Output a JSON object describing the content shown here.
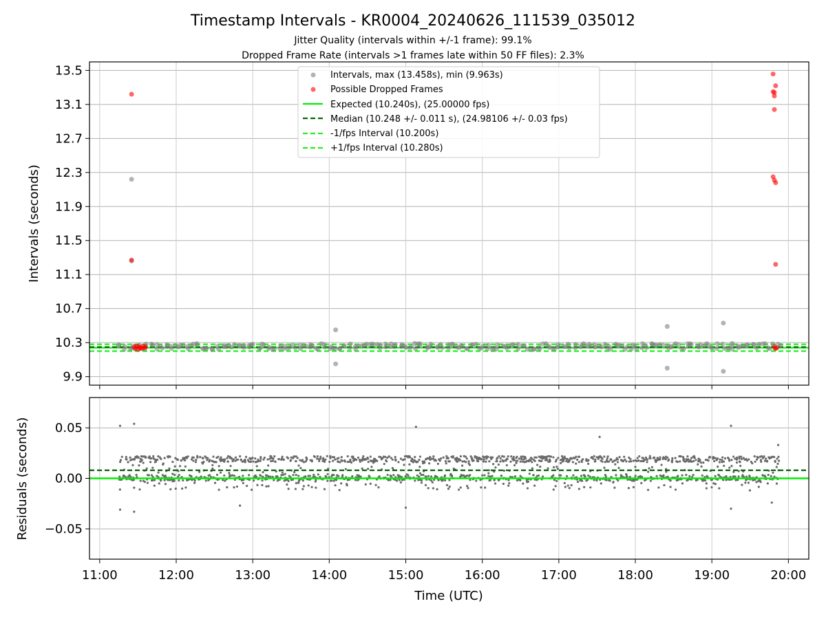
{
  "title": "Timestamp Intervals - KR0004_20240626_111539_035012",
  "subtitle_1": "Jitter Quality (intervals within +/-1 frame): 99.1%",
  "subtitle_2": "Dropped Frame Rate (intervals >1 frames late within 50 FF files): 2.3%",
  "colors": {
    "intervals": "#808080",
    "dropped": "#ff0000",
    "expected": "#00ee00",
    "median": "#006400",
    "bounds": "#22ee22",
    "residuals": "#696969"
  },
  "chart_data": [
    {
      "type": "scatter",
      "ylabel": "Intervals (seconds)",
      "ylim": [
        9.8,
        13.6
      ],
      "xlim": [
        "10:52",
        "20:16"
      ],
      "y_ticks": [
        "9.9",
        "10.3",
        "10.7",
        "11.1",
        "11.5",
        "11.9",
        "12.3",
        "12.7",
        "13.1",
        "13.5"
      ],
      "grid": true,
      "legend_placement": "upper-center",
      "legend": [
        "Intervals, max (13.458s), min (9.963s)",
        "Possible Dropped Frames",
        "Expected (10.240s), (25.00000 fps)",
        "Median (10.248 +/- 0.011 s), (24.98106 +/- 0.03 fps)",
        "-1/fps Interval (10.200s)",
        "+1/fps Interval (10.280s)"
      ],
      "reference_lines": {
        "expected": 10.24,
        "median": 10.248,
        "lower_bound": 10.2,
        "upper_bound": 10.28
      },
      "series": [
        {
          "name": "Intervals, max (13.458s), min (9.963s)",
          "dense_band": {
            "x_range": [
              "11:15",
              "19:52"
            ],
            "y_range": [
              10.22,
              10.29
            ]
          },
          "points": [
            {
              "x": "11:25",
              "y": 12.22
            },
            {
              "x": "11:25",
              "y": 11.26
            },
            {
              "x": "14:05",
              "y": 10.45
            },
            {
              "x": "14:05",
              "y": 10.05
            },
            {
              "x": "15:07",
              "y": 10.29
            },
            {
              "x": "18:25",
              "y": 10.49
            },
            {
              "x": "18:25",
              "y": 10.0
            },
            {
              "x": "19:09",
              "y": 10.53
            },
            {
              "x": "19:09",
              "y": 9.963
            },
            {
              "x": "19:16",
              "y": 10.29
            }
          ]
        },
        {
          "name": "Possible Dropped Frames",
          "points": [
            {
              "x": "11:25",
              "y": 13.22
            },
            {
              "x": "11:25",
              "y": 11.27
            },
            {
              "x": "11:27",
              "y": 10.25
            },
            {
              "x": "11:28",
              "y": 10.23
            },
            {
              "x": "11:29",
              "y": 10.26
            },
            {
              "x": "11:30",
              "y": 10.22
            },
            {
              "x": "11:31",
              "y": 10.25
            },
            {
              "x": "11:32",
              "y": 10.24
            },
            {
              "x": "11:33",
              "y": 10.23
            },
            {
              "x": "11:34",
              "y": 10.26
            },
            {
              "x": "11:35",
              "y": 10.24
            },
            {
              "x": "11:36",
              "y": 10.25
            },
            {
              "x": "19:48",
              "y": 13.458
            },
            {
              "x": "19:48",
              "y": 13.25
            },
            {
              "x": "19:49",
              "y": 13.24
            },
            {
              "x": "19:49",
              "y": 13.2
            },
            {
              "x": "19:49",
              "y": 13.04
            },
            {
              "x": "19:50",
              "y": 13.32
            },
            {
              "x": "19:48",
              "y": 12.25
            },
            {
              "x": "19:49",
              "y": 12.21
            },
            {
              "x": "19:50",
              "y": 12.18
            },
            {
              "x": "19:50",
              "y": 11.22
            },
            {
              "x": "19:49",
              "y": 10.25
            },
            {
              "x": "19:50",
              "y": 10.23
            },
            {
              "x": "19:51",
              "y": 10.24
            }
          ]
        }
      ]
    },
    {
      "type": "scatter",
      "xlabel": "Time (UTC)",
      "ylabel": "Residuals (seconds)",
      "ylim": [
        -0.08,
        0.08
      ],
      "xlim": [
        "10:52",
        "20:16"
      ],
      "x_ticks": [
        "11:00",
        "12:00",
        "13:00",
        "14:00",
        "15:00",
        "16:00",
        "17:00",
        "18:00",
        "19:00",
        "20:00"
      ],
      "y_ticks": [
        "−0.05",
        "0.00",
        "0.05"
      ],
      "grid": true,
      "reference_lines": {
        "zero": 0.0,
        "median_offset": 0.008
      },
      "series": [
        {
          "name": "",
          "dense_band": {
            "x_range": [
              "11:15",
              "19:52"
            ],
            "y_range": [
              -0.012,
              0.022
            ]
          },
          "points": [
            {
              "x": "11:16",
              "y": 0.052
            },
            {
              "x": "11:16",
              "y": -0.031
            },
            {
              "x": "11:27",
              "y": 0.054
            },
            {
              "x": "11:27",
              "y": -0.033
            },
            {
              "x": "12:50",
              "y": -0.027
            },
            {
              "x": "15:08",
              "y": 0.051
            },
            {
              "x": "15:00",
              "y": -0.029
            },
            {
              "x": "17:32",
              "y": 0.041
            },
            {
              "x": "19:15",
              "y": 0.052
            },
            {
              "x": "19:15",
              "y": -0.03
            },
            {
              "x": "19:47",
              "y": -0.024
            },
            {
              "x": "19:52",
              "y": 0.033
            }
          ]
        }
      ]
    }
  ]
}
